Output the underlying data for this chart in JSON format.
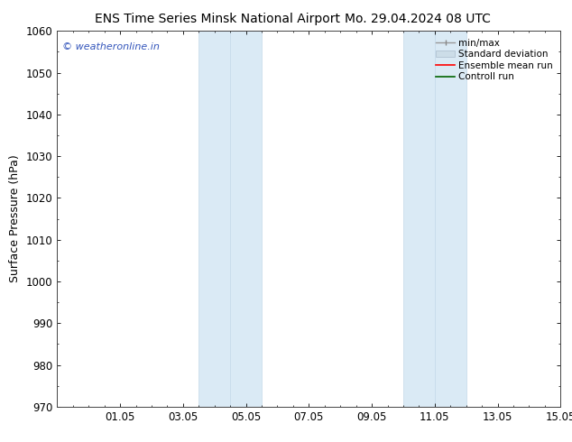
{
  "title_left": "ENS Time Series Minsk National Airport",
  "title_right": "Mo. 29.04.2024 08 UTC",
  "ylabel": "Surface Pressure (hPa)",
  "ylim": [
    970,
    1060
  ],
  "yticks": [
    970,
    980,
    990,
    1000,
    1010,
    1020,
    1030,
    1040,
    1050,
    1060
  ],
  "xlim": [
    0,
    16
  ],
  "xtick_labels": [
    "01.05",
    "03.05",
    "05.05",
    "07.05",
    "09.05",
    "11.05",
    "13.05",
    "15.05"
  ],
  "xtick_positions": [
    2,
    4,
    6,
    8,
    10,
    12,
    14,
    16
  ],
  "shaded_bands": [
    {
      "x_start": 4.5,
      "x_end": 5.5
    },
    {
      "x_start": 5.5,
      "x_end": 6.5
    },
    {
      "x_start": 11.0,
      "x_end": 12.0
    },
    {
      "x_start": 12.0,
      "x_end": 13.0
    }
  ],
  "shaded_color": "#daeaf5",
  "shaded_edge_color": "#c5daea",
  "watermark_text": "© weatheronline.in",
  "watermark_color": "#3355bb",
  "background_color": "#ffffff",
  "spine_color": "#444444",
  "title_fontsize": 10,
  "tick_fontsize": 8.5,
  "label_fontsize": 9,
  "legend_fontsize": 7.5
}
